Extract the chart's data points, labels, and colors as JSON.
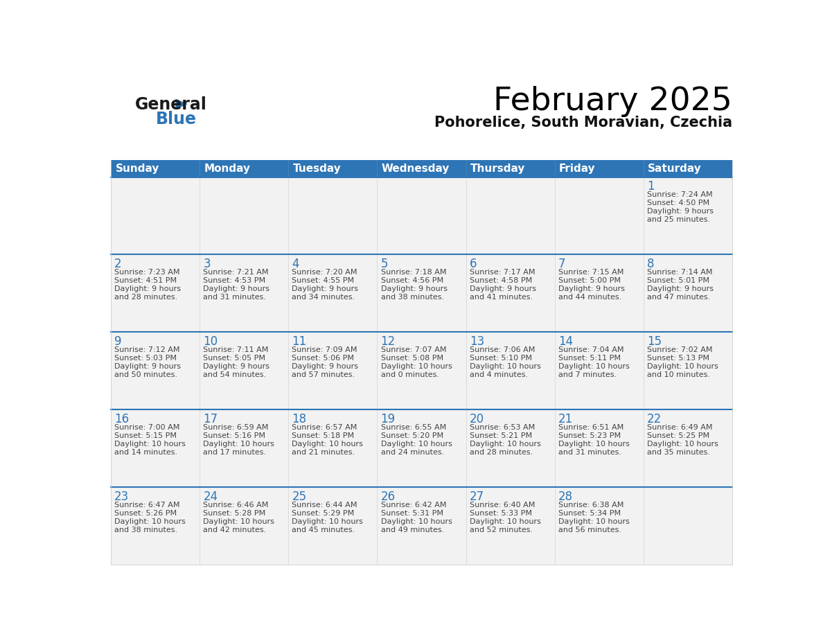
{
  "title": "February 2025",
  "subtitle": "Pohorelice, South Moravian, Czechia",
  "days_of_week": [
    "Sunday",
    "Monday",
    "Tuesday",
    "Wednesday",
    "Thursday",
    "Friday",
    "Saturday"
  ],
  "header_bg": "#2E75B6",
  "header_text": "#FFFFFF",
  "cell_bg": "#F2F2F2",
  "separator_color": "#2E75B6",
  "cell_border_color": "#CCCCCC",
  "text_color": "#444444",
  "day_num_color": "#2E75B6",
  "logo_general_color": "#1a1a1a",
  "logo_blue_color": "#2E75B6",
  "weeks": [
    [
      {
        "day": null,
        "sunrise": null,
        "sunset": null,
        "daylight": null
      },
      {
        "day": null,
        "sunrise": null,
        "sunset": null,
        "daylight": null
      },
      {
        "day": null,
        "sunrise": null,
        "sunset": null,
        "daylight": null
      },
      {
        "day": null,
        "sunrise": null,
        "sunset": null,
        "daylight": null
      },
      {
        "day": null,
        "sunrise": null,
        "sunset": null,
        "daylight": null
      },
      {
        "day": null,
        "sunrise": null,
        "sunset": null,
        "daylight": null
      },
      {
        "day": 1,
        "sunrise": "7:24 AM",
        "sunset": "4:50 PM",
        "daylight": "9 hours\nand 25 minutes."
      }
    ],
    [
      {
        "day": 2,
        "sunrise": "7:23 AM",
        "sunset": "4:51 PM",
        "daylight": "9 hours\nand 28 minutes."
      },
      {
        "day": 3,
        "sunrise": "7:21 AM",
        "sunset": "4:53 PM",
        "daylight": "9 hours\nand 31 minutes."
      },
      {
        "day": 4,
        "sunrise": "7:20 AM",
        "sunset": "4:55 PM",
        "daylight": "9 hours\nand 34 minutes."
      },
      {
        "day": 5,
        "sunrise": "7:18 AM",
        "sunset": "4:56 PM",
        "daylight": "9 hours\nand 38 minutes."
      },
      {
        "day": 6,
        "sunrise": "7:17 AM",
        "sunset": "4:58 PM",
        "daylight": "9 hours\nand 41 minutes."
      },
      {
        "day": 7,
        "sunrise": "7:15 AM",
        "sunset": "5:00 PM",
        "daylight": "9 hours\nand 44 minutes."
      },
      {
        "day": 8,
        "sunrise": "7:14 AM",
        "sunset": "5:01 PM",
        "daylight": "9 hours\nand 47 minutes."
      }
    ],
    [
      {
        "day": 9,
        "sunrise": "7:12 AM",
        "sunset": "5:03 PM",
        "daylight": "9 hours\nand 50 minutes."
      },
      {
        "day": 10,
        "sunrise": "7:11 AM",
        "sunset": "5:05 PM",
        "daylight": "9 hours\nand 54 minutes."
      },
      {
        "day": 11,
        "sunrise": "7:09 AM",
        "sunset": "5:06 PM",
        "daylight": "9 hours\nand 57 minutes."
      },
      {
        "day": 12,
        "sunrise": "7:07 AM",
        "sunset": "5:08 PM",
        "daylight": "10 hours\nand 0 minutes."
      },
      {
        "day": 13,
        "sunrise": "7:06 AM",
        "sunset": "5:10 PM",
        "daylight": "10 hours\nand 4 minutes."
      },
      {
        "day": 14,
        "sunrise": "7:04 AM",
        "sunset": "5:11 PM",
        "daylight": "10 hours\nand 7 minutes."
      },
      {
        "day": 15,
        "sunrise": "7:02 AM",
        "sunset": "5:13 PM",
        "daylight": "10 hours\nand 10 minutes."
      }
    ],
    [
      {
        "day": 16,
        "sunrise": "7:00 AM",
        "sunset": "5:15 PM",
        "daylight": "10 hours\nand 14 minutes."
      },
      {
        "day": 17,
        "sunrise": "6:59 AM",
        "sunset": "5:16 PM",
        "daylight": "10 hours\nand 17 minutes."
      },
      {
        "day": 18,
        "sunrise": "6:57 AM",
        "sunset": "5:18 PM",
        "daylight": "10 hours\nand 21 minutes."
      },
      {
        "day": 19,
        "sunrise": "6:55 AM",
        "sunset": "5:20 PM",
        "daylight": "10 hours\nand 24 minutes."
      },
      {
        "day": 20,
        "sunrise": "6:53 AM",
        "sunset": "5:21 PM",
        "daylight": "10 hours\nand 28 minutes."
      },
      {
        "day": 21,
        "sunrise": "6:51 AM",
        "sunset": "5:23 PM",
        "daylight": "10 hours\nand 31 minutes."
      },
      {
        "day": 22,
        "sunrise": "6:49 AM",
        "sunset": "5:25 PM",
        "daylight": "10 hours\nand 35 minutes."
      }
    ],
    [
      {
        "day": 23,
        "sunrise": "6:47 AM",
        "sunset": "5:26 PM",
        "daylight": "10 hours\nand 38 minutes."
      },
      {
        "day": 24,
        "sunrise": "6:46 AM",
        "sunset": "5:28 PM",
        "daylight": "10 hours\nand 42 minutes."
      },
      {
        "day": 25,
        "sunrise": "6:44 AM",
        "sunset": "5:29 PM",
        "daylight": "10 hours\nand 45 minutes."
      },
      {
        "day": 26,
        "sunrise": "6:42 AM",
        "sunset": "5:31 PM",
        "daylight": "10 hours\nand 49 minutes."
      },
      {
        "day": 27,
        "sunrise": "6:40 AM",
        "sunset": "5:33 PM",
        "daylight": "10 hours\nand 52 minutes."
      },
      {
        "day": 28,
        "sunrise": "6:38 AM",
        "sunset": "5:34 PM",
        "daylight": "10 hours\nand 56 minutes."
      },
      {
        "day": null,
        "sunrise": null,
        "sunset": null,
        "daylight": null
      }
    ]
  ]
}
